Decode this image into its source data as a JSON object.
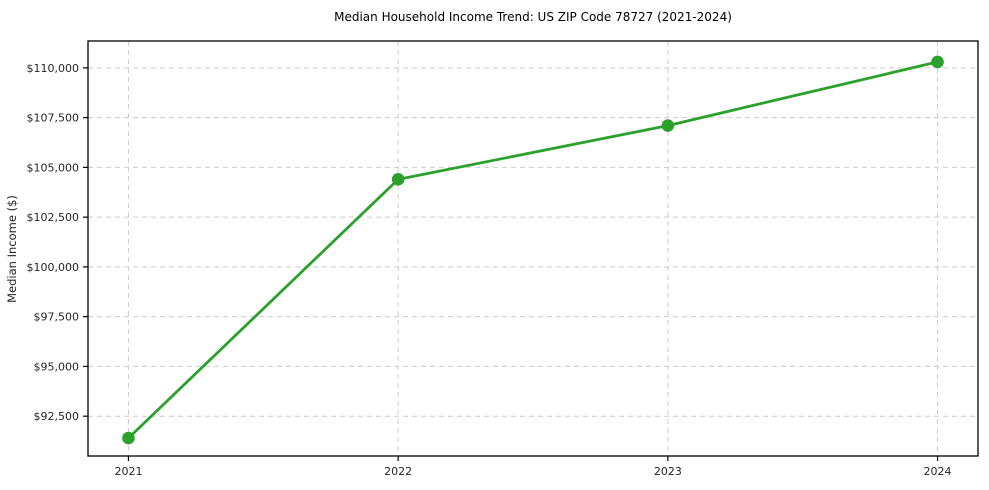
{
  "chart_data": {
    "type": "line",
    "title": "Median Household Income Trend: US ZIP Code 78727 (2021-2024)",
    "xlabel": "",
    "ylabel": "Median Income ($)",
    "x": [
      2021,
      2022,
      2023,
      2024
    ],
    "categories": [
      "2021",
      "2022",
      "2023",
      "2024"
    ],
    "series": [
      {
        "name": "median_household_income",
        "values": [
          91400,
          104400,
          107100,
          110300
        ],
        "color": "#2ca02c",
        "marker": "circle"
      }
    ],
    "xticks": [
      2021,
      2022,
      2023,
      2024
    ],
    "xtick_labels": [
      "2021",
      "2022",
      "2023",
      "2024"
    ],
    "yticks": [
      92500,
      95000,
      97500,
      100000,
      102500,
      105000,
      107500,
      110000
    ],
    "ytick_labels": [
      "$92,500",
      "$95,000",
      "$97,500",
      "$100,000",
      "$102,500",
      "$105,000",
      "$107,500",
      "$110,000"
    ],
    "xlim": [
      2020.85,
      2024.15
    ],
    "ylim": [
      90500,
      111350
    ],
    "grid": true,
    "grid_style": "dashed",
    "grid_color": "#cccccc",
    "axis_color": "#000000",
    "tick_label_color": "#262626",
    "background": "#ffffff",
    "legend_position": "none"
  }
}
